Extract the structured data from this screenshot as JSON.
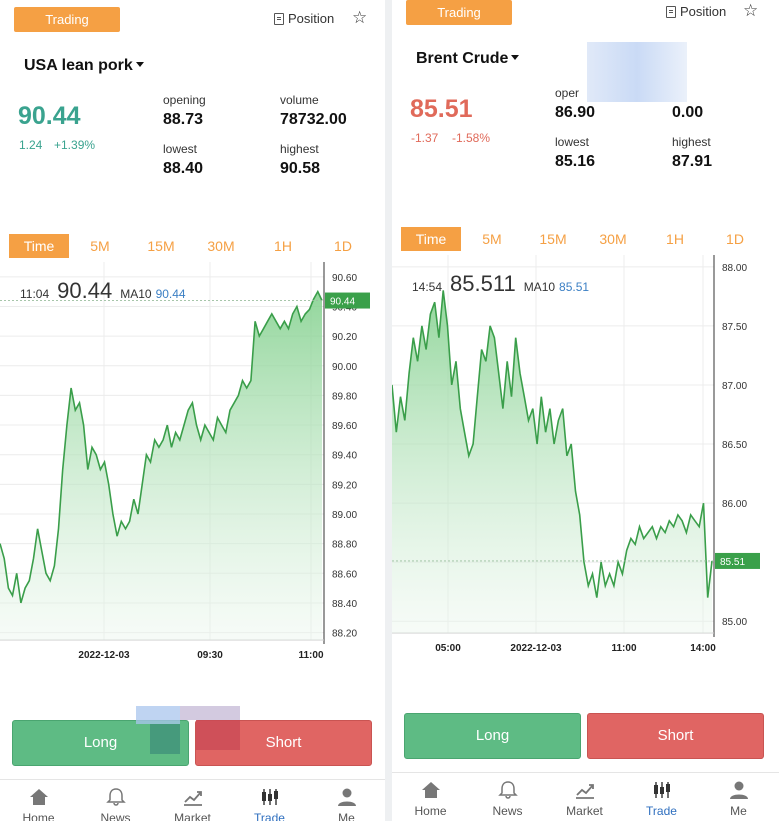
{
  "panels": [
    {
      "trading_label": "Trading",
      "position_label": "Position",
      "title": "USA lean pork",
      "price": "90.44",
      "change": "1.24",
      "change_pct": "+1.39%",
      "opening_label": "opening",
      "opening": "88.73",
      "volume_label": "volume",
      "volume": "78732.00",
      "lowest_label": "lowest",
      "lowest": "88.40",
      "highest_label": "highest",
      "highest": "90.58",
      "tabs": [
        "Time",
        "5M",
        "15M",
        "30M",
        "1H",
        "1D"
      ],
      "info_time": "11:04",
      "info_price": "90.44",
      "info_ma_label": "MA10",
      "info_ma_value": "90.44",
      "long_label": "Long",
      "short_label": "Short",
      "price_color": "#3aa38f",
      "change_color": "#3aa38f"
    },
    {
      "trading_label": "Trading",
      "position_label": "Position",
      "title": "Brent Crude",
      "price": "85.51",
      "change": "-1.37",
      "change_pct": "-1.58%",
      "opening_label": "oper",
      "opening": "86.90",
      "volume_label": "",
      "volume": "0.00",
      "lowest_label": "lowest",
      "lowest": "85.16",
      "highest_label": "highest",
      "highest": "87.91",
      "tabs": [
        "Time",
        "5M",
        "15M",
        "30M",
        "1H",
        "1D"
      ],
      "info_time": "14:54",
      "info_price": "85.511",
      "info_ma_label": "MA10",
      "info_ma_value": "85.51",
      "long_label": "Long",
      "short_label": "Short",
      "price_color": "#e06a5a",
      "change_color": "#e06a5a"
    }
  ],
  "nav": [
    {
      "label": "Home",
      "icon": "home-icon"
    },
    {
      "label": "News",
      "icon": "bell-icon"
    },
    {
      "label": "Market",
      "icon": "chart-trend-icon"
    },
    {
      "label": "Trade",
      "icon": "candlestick-icon"
    },
    {
      "label": "Me",
      "icon": "user-icon"
    }
  ],
  "chart_data": [
    {
      "type": "area",
      "title": "",
      "xlabel": "",
      "ylabel": "",
      "x_ticks": [
        "2022-12-03",
        "09:30",
        "11:00"
      ],
      "y_ticks": [
        "88.20",
        "88.40",
        "88.60",
        "88.80",
        "89.00",
        "89.20",
        "89.40",
        "89.60",
        "89.80",
        "90.00",
        "90.20",
        "90.40",
        "90.60"
      ],
      "ylim": [
        88.15,
        90.7
      ],
      "current_value": "90.44",
      "line_color": "#3a9e4a",
      "y": [
        88.8,
        88.7,
        88.5,
        88.45,
        88.6,
        88.4,
        88.5,
        88.55,
        88.7,
        88.9,
        88.75,
        88.6,
        88.55,
        88.65,
        88.9,
        89.3,
        89.6,
        89.85,
        89.7,
        89.75,
        89.6,
        89.3,
        89.45,
        89.4,
        89.3,
        89.35,
        89.2,
        89.0,
        88.85,
        88.95,
        88.9,
        88.95,
        89.1,
        89.0,
        89.2,
        89.4,
        89.35,
        89.5,
        89.45,
        89.5,
        89.6,
        89.45,
        89.55,
        89.5,
        89.6,
        89.7,
        89.75,
        89.6,
        89.5,
        89.6,
        89.55,
        89.5,
        89.65,
        89.6,
        89.55,
        89.7,
        89.75,
        89.8,
        89.9,
        89.85,
        89.9,
        90.3,
        90.2,
        90.25,
        90.3,
        90.35,
        90.3,
        90.25,
        90.3,
        90.25,
        90.35,
        90.4,
        90.3,
        90.35,
        90.38,
        90.45,
        90.5,
        90.44
      ]
    },
    {
      "type": "area",
      "title": "",
      "xlabel": "",
      "ylabel": "",
      "x_ticks": [
        "05:00",
        "2022-12-03",
        "11:00",
        "14:00"
      ],
      "y_ticks": [
        "85.00",
        "85.50",
        "86.00",
        "86.50",
        "87.00",
        "87.50",
        "88.00"
      ],
      "ylim": [
        84.9,
        88.1
      ],
      "current_value": "85.51",
      "line_color": "#3a9e4a",
      "y": [
        87.0,
        86.6,
        86.9,
        86.7,
        87.1,
        87.4,
        87.2,
        87.5,
        87.3,
        87.6,
        87.7,
        87.4,
        87.8,
        87.5,
        87.0,
        87.2,
        86.8,
        86.6,
        86.4,
        86.5,
        86.9,
        87.3,
        87.2,
        87.5,
        87.4,
        87.1,
        86.8,
        87.2,
        86.9,
        87.4,
        87.1,
        86.9,
        86.7,
        86.8,
        86.5,
        86.9,
        86.6,
        86.8,
        86.5,
        86.7,
        86.8,
        86.4,
        86.5,
        86.1,
        85.9,
        85.5,
        85.3,
        85.4,
        85.2,
        85.5,
        85.3,
        85.4,
        85.3,
        85.5,
        85.4,
        85.6,
        85.7,
        85.65,
        85.8,
        85.7,
        85.75,
        85.8,
        85.7,
        85.8,
        85.75,
        85.85,
        85.8,
        85.9,
        85.85,
        85.75,
        85.9,
        85.85,
        85.8,
        86.0,
        85.2,
        85.51
      ]
    }
  ]
}
